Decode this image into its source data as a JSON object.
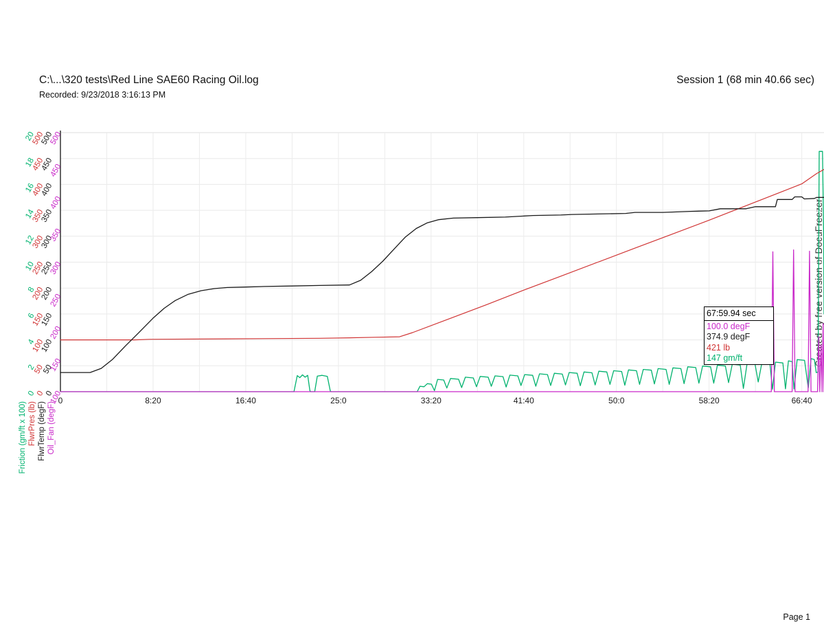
{
  "header": {
    "file_path": "C:\\...\\320 tests\\Red Line SAE60 Racing Oil.log",
    "recorded": "Recorded: 9/23/2018 3:16:13 PM",
    "session": "Session 1 (68 min 40.66 sec)"
  },
  "watermark": "Created by free version of DocuFreezer",
  "footer": {
    "page": "Page 1"
  },
  "cursor_readout": {
    "time": "67:59.94 sec",
    "oil_fan": "100.0 degF",
    "flwr_temp": "374.9 degF",
    "flwr_pres": "421 lb",
    "friction": "147 gm/ft"
  },
  "chart_data": {
    "type": "line",
    "grid": true,
    "legend_position": "none",
    "x_axis": {
      "unit": "min:sec",
      "min_seconds": 0,
      "max_seconds": 4120,
      "minor_gridline_seconds": 250,
      "ticks": [
        {
          "seconds": 0,
          "label": "0"
        },
        {
          "seconds": 500,
          "label": "8:20"
        },
        {
          "seconds": 1000,
          "label": "16:40"
        },
        {
          "seconds": 1500,
          "label": "25:0"
        },
        {
          "seconds": 2000,
          "label": "33:20"
        },
        {
          "seconds": 2500,
          "label": "41:40"
        },
        {
          "seconds": 3000,
          "label": "50:0"
        },
        {
          "seconds": 3500,
          "label": "58:20"
        },
        {
          "seconds": 4000,
          "label": "66:40"
        }
      ]
    },
    "y_axes": [
      {
        "id": "friction",
        "name": "Friction (gm/ft x 100)",
        "color": "#00b26e",
        "min": 0,
        "max": 2000,
        "tick_labels": [
          "0",
          "2",
          "4",
          "6",
          "8",
          "10",
          "12",
          "14",
          "16",
          "18",
          "20"
        ]
      },
      {
        "id": "flwr_pres",
        "name": "FlwrPres (lb)",
        "color": "#d03434",
        "min": 0,
        "max": 500,
        "tick_labels": [
          "0",
          "50",
          "100",
          "150",
          "200",
          "250",
          "300",
          "350",
          "400",
          "450",
          "500"
        ]
      },
      {
        "id": "flwr_temp",
        "name": "FlwrTemp (degF)",
        "color": "#1a1a1a",
        "min": 0,
        "max": 500,
        "tick_labels": [
          "0",
          "50",
          "100",
          "150",
          "200",
          "250",
          "300",
          "350",
          "400",
          "450",
          "500"
        ]
      },
      {
        "id": "oil_fan",
        "name": "Oil_Fan (degF)",
        "color": "#c928c9",
        "min": 100,
        "max": 500,
        "tick_labels": [
          "100",
          "150",
          "200",
          "250",
          "300",
          "350",
          "400",
          "450",
          "500"
        ]
      }
    ],
    "series": [
      {
        "id": "friction",
        "axis": "friction",
        "color": "#00b26e",
        "width": 1.3,
        "points": [
          [
            0,
            0
          ],
          [
            1260,
            0
          ],
          [
            1278,
            124
          ],
          [
            1292,
            108
          ],
          [
            1306,
            130
          ],
          [
            1320,
            112
          ],
          [
            1334,
            126
          ],
          [
            1346,
            8
          ],
          [
            1350,
            0
          ],
          [
            1372,
            0
          ],
          [
            1386,
            120
          ],
          [
            1412,
            126
          ],
          [
            1440,
            118
          ],
          [
            1456,
            6
          ],
          [
            1460,
            0
          ],
          [
            1925,
            0
          ],
          [
            1940,
            42
          ],
          [
            1962,
            38
          ],
          [
            1980,
            62
          ],
          [
            2002,
            58
          ],
          [
            2018,
            8
          ],
          [
            2035,
            95
          ],
          [
            2068,
            90
          ],
          [
            2085,
            28
          ],
          [
            2105,
            102
          ],
          [
            2148,
            96
          ],
          [
            2165,
            32
          ],
          [
            2185,
            112
          ],
          [
            2228,
            106
          ],
          [
            2245,
            38
          ],
          [
            2265,
            118
          ],
          [
            2308,
            112
          ],
          [
            2325,
            42
          ],
          [
            2345,
            122
          ],
          [
            2388,
            116
          ],
          [
            2405,
            36
          ],
          [
            2425,
            128
          ],
          [
            2468,
            122
          ],
          [
            2485,
            48
          ],
          [
            2505,
            132
          ],
          [
            2548,
            126
          ],
          [
            2565,
            42
          ],
          [
            2585,
            138
          ],
          [
            2628,
            132
          ],
          [
            2645,
            48
          ],
          [
            2665,
            142
          ],
          [
            2708,
            136
          ],
          [
            2725,
            52
          ],
          [
            2745,
            148
          ],
          [
            2788,
            142
          ],
          [
            2805,
            46
          ],
          [
            2825,
            152
          ],
          [
            2868,
            146
          ],
          [
            2885,
            52
          ],
          [
            2905,
            158
          ],
          [
            2948,
            152
          ],
          [
            2965,
            56
          ],
          [
            2985,
            162
          ],
          [
            3028,
            156
          ],
          [
            3045,
            50
          ],
          [
            3065,
            168
          ],
          [
            3108,
            162
          ],
          [
            3125,
            56
          ],
          [
            3145,
            172
          ],
          [
            3188,
            166
          ],
          [
            3205,
            60
          ],
          [
            3225,
            178
          ],
          [
            3268,
            172
          ],
          [
            3285,
            56
          ],
          [
            3305,
            184
          ],
          [
            3348,
            178
          ],
          [
            3365,
            62
          ],
          [
            3385,
            192
          ],
          [
            3428,
            186
          ],
          [
            3445,
            66
          ],
          [
            3465,
            198
          ],
          [
            3508,
            192
          ],
          [
            3525,
            66
          ],
          [
            3545,
            205
          ],
          [
            3588,
            198
          ],
          [
            3605,
            70
          ],
          [
            3625,
            212
          ],
          [
            3668,
            206
          ],
          [
            3685,
            25
          ],
          [
            3705,
            218
          ],
          [
            3748,
            212
          ],
          [
            3765,
            75
          ],
          [
            3785,
            224
          ],
          [
            3828,
            218
          ],
          [
            3842,
            18
          ],
          [
            3858,
            228
          ],
          [
            3898,
            222
          ],
          [
            3912,
            22
          ],
          [
            3928,
            238
          ],
          [
            3948,
            232
          ],
          [
            3958,
            20
          ],
          [
            3975,
            248
          ],
          [
            4015,
            242
          ],
          [
            4035,
            28
          ],
          [
            4050,
            255
          ],
          [
            4068,
            248
          ],
          [
            4078,
            147
          ],
          [
            4088,
            152
          ],
          [
            4094,
            1855
          ],
          [
            4112,
            1855
          ],
          [
            4118,
            1200
          ],
          [
            4120,
            600
          ]
        ]
      },
      {
        "id": "oil_fan",
        "axis": "oil_fan",
        "color": "#c928c9",
        "width": 1.3,
        "points": [
          [
            0,
            100
          ],
          [
            3836,
            100
          ],
          [
            3844,
            316
          ],
          [
            3852,
            100
          ],
          [
            3948,
            100
          ],
          [
            3956,
            319
          ],
          [
            3964,
            100
          ],
          [
            4034,
            100
          ],
          [
            4042,
            317
          ],
          [
            4050,
            100
          ],
          [
            4085,
            100
          ],
          [
            4091,
            185
          ],
          [
            4097,
            100
          ],
          [
            4104,
            172
          ],
          [
            4110,
            100
          ],
          [
            4115,
            205
          ],
          [
            4120,
            100
          ]
        ]
      },
      {
        "id": "flwr_pres",
        "axis": "flwr_pres",
        "color": "#d03434",
        "width": 1.2,
        "points": [
          [
            0,
            100
          ],
          [
            400,
            100
          ],
          [
            480,
            101
          ],
          [
            900,
            102
          ],
          [
            1400,
            103
          ],
          [
            1560,
            104
          ],
          [
            1700,
            105
          ],
          [
            1830,
            106
          ],
          [
            1900,
            114
          ],
          [
            2100,
            141
          ],
          [
            2300,
            168
          ],
          [
            2500,
            196
          ],
          [
            2700,
            223
          ],
          [
            2900,
            250
          ],
          [
            3100,
            277
          ],
          [
            3300,
            304
          ],
          [
            3500,
            331
          ],
          [
            3700,
            359
          ],
          [
            3900,
            387
          ],
          [
            4000,
            401
          ],
          [
            4080,
            421
          ],
          [
            4120,
            429
          ]
        ]
      },
      {
        "id": "flwr_temp",
        "axis": "flwr_temp",
        "color": "#1a1a1a",
        "width": 1.3,
        "points": [
          [
            0,
            37
          ],
          [
            160,
            37
          ],
          [
            220,
            45
          ],
          [
            280,
            62
          ],
          [
            350,
            88
          ],
          [
            420,
            113
          ],
          [
            500,
            142
          ],
          [
            560,
            161
          ],
          [
            620,
            176
          ],
          [
            690,
            188
          ],
          [
            760,
            195
          ],
          [
            830,
            199
          ],
          [
            900,
            201
          ],
          [
            1000,
            202
          ],
          [
            1100,
            203
          ],
          [
            1250,
            204
          ],
          [
            1400,
            205
          ],
          [
            1560,
            206
          ],
          [
            1620,
            215
          ],
          [
            1680,
            232
          ],
          [
            1740,
            252
          ],
          [
            1800,
            275
          ],
          [
            1860,
            298
          ],
          [
            1920,
            315
          ],
          [
            1980,
            326
          ],
          [
            2040,
            332
          ],
          [
            2120,
            335
          ],
          [
            2250,
            336
          ],
          [
            2400,
            337
          ],
          [
            2550,
            340
          ],
          [
            2700,
            341
          ],
          [
            2760,
            342
          ],
          [
            2900,
            343
          ],
          [
            3050,
            344
          ],
          [
            3100,
            346
          ],
          [
            3250,
            346
          ],
          [
            3400,
            348
          ],
          [
            3500,
            349
          ],
          [
            3560,
            353
          ],
          [
            3700,
            353
          ],
          [
            3750,
            357
          ],
          [
            3858,
            357
          ],
          [
            3868,
            371
          ],
          [
            3948,
            371
          ],
          [
            3962,
            376
          ],
          [
            4000,
            376
          ],
          [
            4014,
            372
          ],
          [
            4068,
            373
          ],
          [
            4080,
            375
          ],
          [
            4120,
            375
          ]
        ]
      }
    ]
  }
}
